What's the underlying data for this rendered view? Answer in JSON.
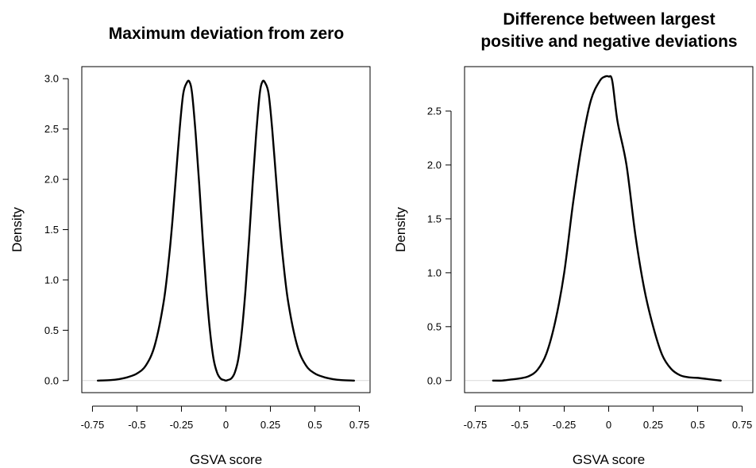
{
  "chart_data": [
    {
      "type": "line",
      "title": [
        "Maximum deviation from zero"
      ],
      "xlabel": "GSVA score",
      "ylabel": "Density",
      "xlim": [
        -0.75,
        0.75
      ],
      "ylim": [
        0,
        3.0
      ],
      "xticks": [
        -0.75,
        -0.5,
        -0.25,
        0,
        0.25,
        0.5,
        0.75
      ],
      "xtick_labels": [
        "-0.75",
        "-0.5",
        "-0.25",
        "0",
        "0.25",
        "0.5",
        "0.75"
      ],
      "yticks": [
        0,
        0.5,
        1.0,
        1.5,
        2.0,
        2.5,
        3.0
      ],
      "ytick_labels": [
        "0.0",
        "0.5",
        "1.0",
        "1.5",
        "2.0",
        "2.5",
        "3.0"
      ],
      "grid": false,
      "baseline_y": 0,
      "series": [
        {
          "x": [
            -0.72,
            -0.65,
            -0.6,
            -0.55,
            -0.5,
            -0.45,
            -0.4,
            -0.35,
            -0.32,
            -0.3,
            -0.28,
            -0.26,
            -0.24,
            -0.22,
            -0.205,
            -0.19,
            -0.17,
            -0.15,
            -0.13,
            -0.11,
            -0.09,
            -0.07,
            -0.05,
            -0.03,
            -0.01,
            0,
            0.01,
            0.03,
            0.05,
            0.07,
            0.09,
            0.11,
            0.13,
            0.15,
            0.17,
            0.19,
            0.205,
            0.22,
            0.24,
            0.26,
            0.28,
            0.3,
            0.32,
            0.35,
            0.4,
            0.45,
            0.5,
            0.55,
            0.6,
            0.65,
            0.72
          ],
          "y": [
            0.0,
            0.005,
            0.015,
            0.035,
            0.07,
            0.15,
            0.35,
            0.78,
            1.22,
            1.6,
            2.05,
            2.5,
            2.85,
            2.96,
            2.97,
            2.85,
            2.45,
            1.95,
            1.4,
            0.9,
            0.5,
            0.22,
            0.08,
            0.02,
            0.005,
            0.0,
            0.005,
            0.02,
            0.08,
            0.22,
            0.5,
            0.9,
            1.4,
            1.95,
            2.45,
            2.85,
            2.97,
            2.96,
            2.85,
            2.5,
            2.05,
            1.6,
            1.22,
            0.78,
            0.35,
            0.15,
            0.07,
            0.035,
            0.015,
            0.005,
            0.0
          ]
        }
      ]
    },
    {
      "type": "line",
      "title": [
        "Difference between largest",
        "positive and negative deviations"
      ],
      "xlabel": "GSVA score",
      "ylabel": "Density",
      "xlim": [
        -0.75,
        0.75
      ],
      "ylim": [
        0,
        2.8
      ],
      "xticks": [
        -0.75,
        -0.5,
        -0.25,
        0,
        0.25,
        0.5,
        0.75
      ],
      "xtick_labels": [
        "-0.75",
        "-0.5",
        "-0.25",
        "0",
        "0.25",
        "0.5",
        "0.75"
      ],
      "yticks": [
        0,
        0.5,
        1.0,
        1.5,
        2.0,
        2.5
      ],
      "ytick_labels": [
        "0.0",
        "0.5",
        "1.0",
        "1.5",
        "2.0",
        "2.5"
      ],
      "grid": false,
      "baseline_y": 0,
      "series": [
        {
          "x": [
            -0.65,
            -0.6,
            -0.55,
            -0.5,
            -0.45,
            -0.4,
            -0.35,
            -0.3,
            -0.25,
            -0.2,
            -0.15,
            -0.1,
            -0.05,
            -0.02,
            0,
            0.02,
            0.05,
            0.1,
            0.15,
            0.2,
            0.25,
            0.3,
            0.35,
            0.4,
            0.45,
            0.5,
            0.55,
            0.6,
            0.63
          ],
          "y": [
            0.0,
            0.0,
            0.01,
            0.02,
            0.04,
            0.1,
            0.25,
            0.55,
            1.0,
            1.65,
            2.2,
            2.6,
            2.78,
            2.82,
            2.82,
            2.78,
            2.4,
            2.0,
            1.35,
            0.85,
            0.5,
            0.24,
            0.11,
            0.05,
            0.03,
            0.025,
            0.015,
            0.005,
            0.0
          ]
        }
      ]
    }
  ]
}
